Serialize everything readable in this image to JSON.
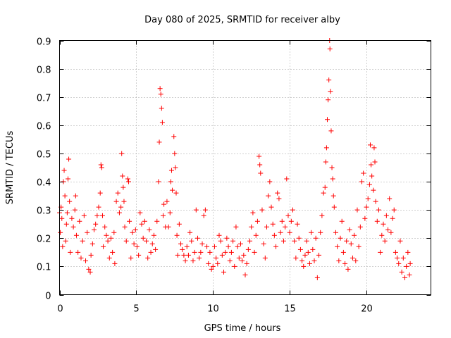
{
  "chart_data": {
    "type": "scatter",
    "title": "Day 080 of 2025, SRMTID for receiver alby",
    "xlabel": "GPS time / hours",
    "ylabel": "SRMTID / TECUs",
    "xlim": [
      0,
      24.2
    ],
    "ylim": [
      0,
      0.9
    ],
    "xticks": [
      0,
      5,
      10,
      15,
      20
    ],
    "xtick_labels": [
      "0",
      "5",
      "10",
      "15",
      "20"
    ],
    "yticks": [
      0,
      0.1,
      0.2,
      0.3,
      0.4,
      0.5,
      0.6,
      0.7,
      0.8,
      0.9
    ],
    "ytick_labels": [
      "0",
      "0.1",
      "0.2",
      "0.3",
      "0.4",
      "0.5",
      "0.6",
      "0.7",
      "0.8",
      "0.9"
    ],
    "grid": true,
    "marker": "+",
    "series": [
      {
        "name": "SRMTID",
        "color": "#ff0000",
        "points": [
          [
            0.0,
            0.29
          ],
          [
            0.05,
            0.22
          ],
          [
            0.1,
            0.31
          ],
          [
            0.15,
            0.27
          ],
          [
            0.2,
            0.17
          ],
          [
            0.25,
            0.4
          ],
          [
            0.3,
            0.44
          ],
          [
            0.35,
            0.35
          ],
          [
            0.4,
            0.19
          ],
          [
            0.45,
            0.25
          ],
          [
            0.5,
            0.29
          ],
          [
            0.55,
            0.41
          ],
          [
            0.6,
            0.48
          ],
          [
            0.65,
            0.33
          ],
          [
            0.7,
            0.15
          ],
          [
            0.8,
            0.27
          ],
          [
            0.9,
            0.24
          ],
          [
            1.0,
            0.3
          ],
          [
            1.05,
            0.35
          ],
          [
            1.1,
            0.21
          ],
          [
            1.2,
            0.15
          ],
          [
            1.3,
            0.26
          ],
          [
            1.4,
            0.13
          ],
          [
            1.5,
            0.19
          ],
          [
            1.6,
            0.28
          ],
          [
            1.7,
            0.12
          ],
          [
            1.8,
            0.22
          ],
          [
            1.9,
            0.09
          ],
          [
            2.0,
            0.08
          ],
          [
            2.05,
            0.14
          ],
          [
            2.15,
            0.18
          ],
          [
            2.25,
            0.23
          ],
          [
            2.35,
            0.25
          ],
          [
            2.45,
            0.28
          ],
          [
            2.55,
            0.31
          ],
          [
            2.65,
            0.36
          ],
          [
            2.7,
            0.46
          ],
          [
            2.75,
            0.45
          ],
          [
            2.8,
            0.28
          ],
          [
            2.85,
            0.17
          ],
          [
            2.95,
            0.24
          ],
          [
            3.05,
            0.21
          ],
          [
            3.15,
            0.19
          ],
          [
            3.25,
            0.13
          ],
          [
            3.35,
            0.2
          ],
          [
            3.45,
            0.15
          ],
          [
            3.55,
            0.22
          ],
          [
            3.6,
            0.11
          ],
          [
            3.7,
            0.33
          ],
          [
            3.8,
            0.36
          ],
          [
            3.9,
            0.29
          ],
          [
            4.0,
            0.31
          ],
          [
            4.05,
            0.5
          ],
          [
            4.1,
            0.42
          ],
          [
            4.15,
            0.38
          ],
          [
            4.2,
            0.33
          ],
          [
            4.25,
            0.24
          ],
          [
            4.35,
            0.19
          ],
          [
            4.45,
            0.41
          ],
          [
            4.5,
            0.4
          ],
          [
            4.55,
            0.26
          ],
          [
            4.65,
            0.13
          ],
          [
            4.75,
            0.22
          ],
          [
            4.85,
            0.18
          ],
          [
            4.95,
            0.23
          ],
          [
            5.05,
            0.17
          ],
          [
            5.15,
            0.14
          ],
          [
            5.25,
            0.29
          ],
          [
            5.35,
            0.25
          ],
          [
            5.45,
            0.2
          ],
          [
            5.55,
            0.26
          ],
          [
            5.65,
            0.19
          ],
          [
            5.75,
            0.13
          ],
          [
            5.85,
            0.23
          ],
          [
            5.95,
            0.15
          ],
          [
            6.05,
            0.18
          ],
          [
            6.15,
            0.21
          ],
          [
            6.25,
            0.16
          ],
          [
            6.35,
            0.26
          ],
          [
            6.45,
            0.4
          ],
          [
            6.5,
            0.54
          ],
          [
            6.55,
            0.73
          ],
          [
            6.6,
            0.71
          ],
          [
            6.65,
            0.66
          ],
          [
            6.7,
            0.61
          ],
          [
            6.75,
            0.28
          ],
          [
            6.8,
            0.32
          ],
          [
            6.9,
            0.24
          ],
          [
            7.0,
            0.33
          ],
          [
            7.1,
            0.24
          ],
          [
            7.2,
            0.29
          ],
          [
            7.25,
            0.4
          ],
          [
            7.3,
            0.44
          ],
          [
            7.35,
            0.37
          ],
          [
            7.45,
            0.56
          ],
          [
            7.5,
            0.5
          ],
          [
            7.55,
            0.45
          ],
          [
            7.6,
            0.36
          ],
          [
            7.65,
            0.21
          ],
          [
            7.7,
            0.14
          ],
          [
            7.8,
            0.25
          ],
          [
            7.9,
            0.18
          ],
          [
            8.0,
            0.16
          ],
          [
            8.1,
            0.14
          ],
          [
            8.2,
            0.12
          ],
          [
            8.3,
            0.17
          ],
          [
            8.4,
            0.14
          ],
          [
            8.5,
            0.22
          ],
          [
            8.6,
            0.19
          ],
          [
            8.7,
            0.12
          ],
          [
            8.8,
            0.15
          ],
          [
            8.9,
            0.3
          ],
          [
            9.0,
            0.2
          ],
          [
            9.1,
            0.13
          ],
          [
            9.2,
            0.15
          ],
          [
            9.3,
            0.18
          ],
          [
            9.4,
            0.28
          ],
          [
            9.5,
            0.3
          ],
          [
            9.6,
            0.17
          ],
          [
            9.7,
            0.11
          ],
          [
            9.8,
            0.15
          ],
          [
            9.9,
            0.09
          ],
          [
            10.0,
            0.1
          ],
          [
            10.1,
            0.17
          ],
          [
            10.2,
            0.13
          ],
          [
            10.3,
            0.11
          ],
          [
            10.4,
            0.21
          ],
          [
            10.5,
            0.19
          ],
          [
            10.6,
            0.14
          ],
          [
            10.7,
            0.08
          ],
          [
            10.8,
            0.15
          ],
          [
            10.9,
            0.2
          ],
          [
            11.0,
            0.17
          ],
          [
            11.1,
            0.12
          ],
          [
            11.2,
            0.15
          ],
          [
            11.3,
            0.19
          ],
          [
            11.4,
            0.1
          ],
          [
            11.5,
            0.24
          ],
          [
            11.6,
            0.17
          ],
          [
            11.7,
            0.13
          ],
          [
            11.8,
            0.18
          ],
          [
            11.9,
            0.12
          ],
          [
            12.0,
            0.14
          ],
          [
            12.1,
            0.07
          ],
          [
            12.2,
            0.11
          ],
          [
            12.3,
            0.16
          ],
          [
            12.4,
            0.19
          ],
          [
            12.5,
            0.24
          ],
          [
            12.6,
            0.29
          ],
          [
            12.7,
            0.15
          ],
          [
            12.8,
            0.21
          ],
          [
            12.9,
            0.26
          ],
          [
            13.0,
            0.49
          ],
          [
            13.05,
            0.46
          ],
          [
            13.1,
            0.43
          ],
          [
            13.2,
            0.3
          ],
          [
            13.3,
            0.18
          ],
          [
            13.4,
            0.13
          ],
          [
            13.5,
            0.24
          ],
          [
            13.6,
            0.35
          ],
          [
            13.7,
            0.4
          ],
          [
            13.8,
            0.31
          ],
          [
            13.9,
            0.25
          ],
          [
            14.0,
            0.21
          ],
          [
            14.1,
            0.17
          ],
          [
            14.2,
            0.36
          ],
          [
            14.3,
            0.34
          ],
          [
            14.4,
            0.22
          ],
          [
            14.5,
            0.26
          ],
          [
            14.6,
            0.19
          ],
          [
            14.7,
            0.24
          ],
          [
            14.8,
            0.41
          ],
          [
            14.9,
            0.28
          ],
          [
            15.0,
            0.22
          ],
          [
            15.1,
            0.26
          ],
          [
            15.2,
            0.3
          ],
          [
            15.3,
            0.19
          ],
          [
            15.4,
            0.13
          ],
          [
            15.5,
            0.25
          ],
          [
            15.6,
            0.2
          ],
          [
            15.7,
            0.16
          ],
          [
            15.8,
            0.12
          ],
          [
            15.9,
            0.1
          ],
          [
            16.0,
            0.14
          ],
          [
            16.1,
            0.19
          ],
          [
            16.2,
            0.15
          ],
          [
            16.3,
            0.11
          ],
          [
            16.4,
            0.22
          ],
          [
            16.5,
            0.16
          ],
          [
            16.6,
            0.12
          ],
          [
            16.7,
            0.2
          ],
          [
            16.8,
            0.06
          ],
          [
            16.9,
            0.14
          ],
          [
            17.0,
            0.22
          ],
          [
            17.1,
            0.28
          ],
          [
            17.2,
            0.36
          ],
          [
            17.3,
            0.38
          ],
          [
            17.35,
            0.47
          ],
          [
            17.4,
            0.52
          ],
          [
            17.45,
            0.62
          ],
          [
            17.5,
            0.69
          ],
          [
            17.55,
            0.76
          ],
          [
            17.6,
            0.9
          ],
          [
            17.62,
            0.87
          ],
          [
            17.65,
            0.72
          ],
          [
            17.7,
            0.58
          ],
          [
            17.75,
            0.45
          ],
          [
            17.8,
            0.41
          ],
          [
            17.85,
            0.35
          ],
          [
            17.9,
            0.31
          ],
          [
            18.0,
            0.22
          ],
          [
            18.1,
            0.17
          ],
          [
            18.2,
            0.12
          ],
          [
            18.3,
            0.2
          ],
          [
            18.4,
            0.26
          ],
          [
            18.5,
            0.15
          ],
          [
            18.6,
            0.11
          ],
          [
            18.7,
            0.19
          ],
          [
            18.8,
            0.09
          ],
          [
            18.9,
            0.23
          ],
          [
            19.0,
            0.18
          ],
          [
            19.1,
            0.13
          ],
          [
            19.2,
            0.21
          ],
          [
            19.3,
            0.12
          ],
          [
            19.4,
            0.3
          ],
          [
            19.5,
            0.17
          ],
          [
            19.6,
            0.24
          ],
          [
            19.7,
            0.4
          ],
          [
            19.8,
            0.43
          ],
          [
            19.9,
            0.27
          ],
          [
            20.0,
            0.31
          ],
          [
            20.1,
            0.34
          ],
          [
            20.2,
            0.39
          ],
          [
            20.25,
            0.53
          ],
          [
            20.3,
            0.46
          ],
          [
            20.35,
            0.42
          ],
          [
            20.45,
            0.37
          ],
          [
            20.5,
            0.52
          ],
          [
            20.55,
            0.47
          ],
          [
            20.6,
            0.33
          ],
          [
            20.7,
            0.26
          ],
          [
            20.8,
            0.3
          ],
          [
            20.9,
            0.15
          ],
          [
            21.0,
            0.21
          ],
          [
            21.1,
            0.25
          ],
          [
            21.2,
            0.19
          ],
          [
            21.3,
            0.28
          ],
          [
            21.4,
            0.23
          ],
          [
            21.5,
            0.34
          ],
          [
            21.6,
            0.22
          ],
          [
            21.7,
            0.27
          ],
          [
            21.8,
            0.3
          ],
          [
            21.9,
            0.15
          ],
          [
            22.0,
            0.13
          ],
          [
            22.1,
            0.11
          ],
          [
            22.2,
            0.19
          ],
          [
            22.3,
            0.08
          ],
          [
            22.4,
            0.13
          ],
          [
            22.5,
            0.06
          ],
          [
            22.6,
            0.1
          ],
          [
            22.7,
            0.15
          ],
          [
            22.8,
            0.07
          ],
          [
            22.85,
            0.11
          ]
        ]
      }
    ]
  }
}
